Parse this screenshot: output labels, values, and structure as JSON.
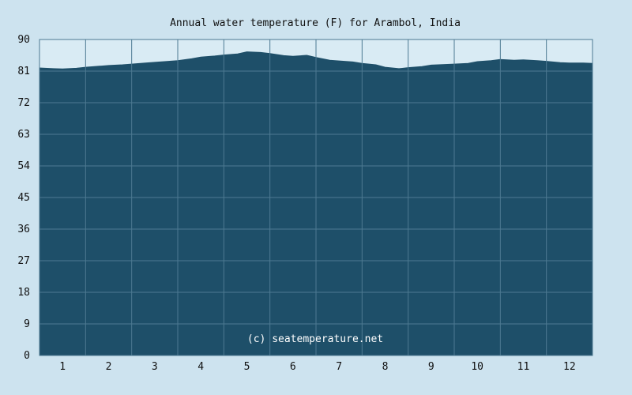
{
  "chart_data": {
    "type": "area",
    "title": "Annual water temperature (F) for Arambol, India",
    "watermark": "(c) seatemperature.net",
    "xlabel": "",
    "ylabel": "",
    "ylim": [
      0,
      90
    ],
    "yticks": [
      "0",
      "9",
      "18",
      "27",
      "36",
      "45",
      "54",
      "63",
      "72",
      "81",
      "90"
    ],
    "xticks": [
      "1",
      "2",
      "3",
      "4",
      "5",
      "6",
      "7",
      "8",
      "9",
      "10",
      "11",
      "12"
    ],
    "grid": true,
    "series": [
      {
        "x": [
          0.5,
          0.8,
          1.0,
          1.3,
          1.5,
          1.8,
          2.0,
          2.3,
          2.5,
          2.8,
          3.0,
          3.3,
          3.5,
          3.8,
          4.0,
          4.3,
          4.5,
          4.8,
          5.0,
          5.3,
          5.5,
          5.8,
          6.0,
          6.3,
          6.5,
          6.8,
          7.0,
          7.3,
          7.5,
          7.8,
          8.0,
          8.3,
          8.5,
          8.8,
          9.0,
          9.3,
          9.5,
          9.8,
          10.0,
          10.3,
          10.5,
          10.8,
          11.0,
          11.3,
          11.5,
          11.8,
          12.0,
          12.3,
          12.5
        ],
        "values": [
          81.9,
          81.7,
          81.6,
          81.8,
          82.1,
          82.4,
          82.6,
          82.8,
          83.0,
          83.3,
          83.5,
          83.8,
          84.0,
          84.5,
          85.0,
          85.3,
          85.6,
          85.9,
          86.5,
          86.3,
          86.0,
          85.4,
          85.2,
          85.5,
          84.9,
          84.1,
          83.9,
          83.6,
          83.2,
          82.8,
          82.1,
          81.7,
          82.0,
          82.3,
          82.7,
          82.9,
          83.0,
          83.2,
          83.7,
          84.0,
          84.3,
          84.1,
          84.2,
          84.0,
          83.8,
          83.4,
          83.3,
          83.3,
          83.2
        ]
      }
    ]
  },
  "colors": {
    "background": "#cde3ef",
    "plot_fill": "#1e4f69",
    "grid": "#4d7a92",
    "axis_text": "#111111",
    "watermark": "#ffffff"
  }
}
